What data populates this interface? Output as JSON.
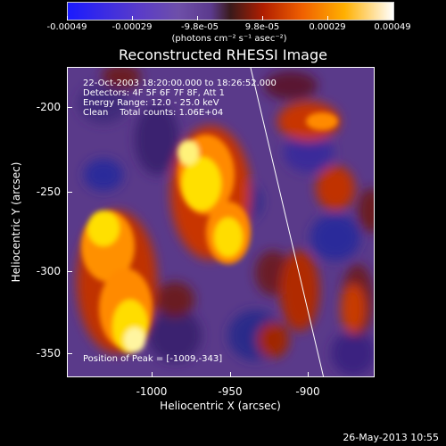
{
  "colorbar": {
    "ticks": [
      "-0.00049",
      "-0.00029",
      "-9.8e-05",
      "9.8e-05",
      "0.00029",
      "0.00049"
    ],
    "units": "(photons cm⁻² s⁻¹ asec⁻²)"
  },
  "title": "Reconstructed RHESSI Image",
  "info": {
    "line1": "22-Oct-2003 18:20:00.000 to 18:26:52.000",
    "line2": "Detectors: 4F 5F 6F 7F 8F, Att 1",
    "line3": "Energy Range: 12.0 - 25.0 keV",
    "line4": "Clean    Total counts: 1.06E+04",
    "peak": "Position of Peak = [-1009,-343]"
  },
  "axes": {
    "xlabel": "Heliocentric X (arcsec)",
    "ylabel": "Heliocentric Y (arcsec)",
    "xticks": [
      "-1000",
      "-950",
      "-900"
    ],
    "yticks": [
      "-200",
      "-250",
      "-300",
      "-350"
    ]
  },
  "footer": {
    "date": "26-May-2013 10:55"
  },
  "colors": {
    "background": "#000000",
    "image_base": "#5a3a8a",
    "hot": "#ffcc00",
    "limb_line": "#ffffff"
  }
}
